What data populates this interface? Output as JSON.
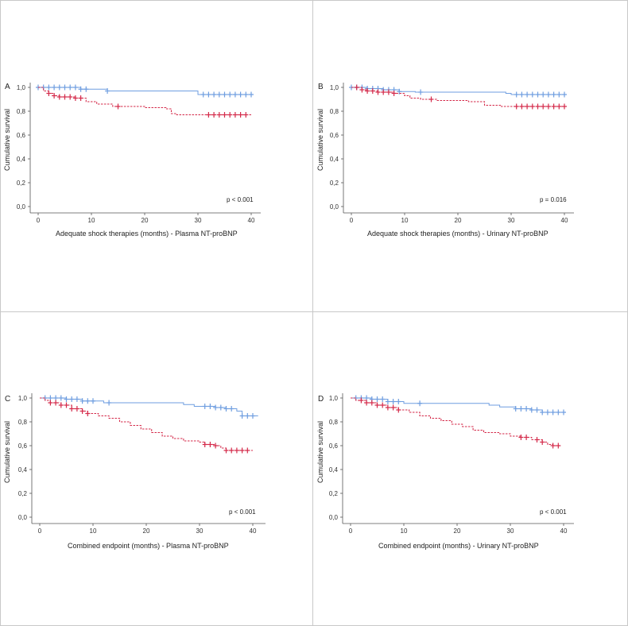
{
  "colors": {
    "high": "#d42a4a",
    "low": "#6f9ee0",
    "axis": "#555555",
    "divider": "#c8c8c8"
  },
  "chart_data": [
    {
      "panel": "A",
      "type": "line",
      "title": "",
      "xlabel": "Adequate shock therapies (months) - Plasma NT-proBNP",
      "ylabel": "Cumulative survival",
      "xlim": [
        0,
        40
      ],
      "ylim": [
        0.0,
        1.0
      ],
      "x_ticks": [
        "0",
        "10",
        "20",
        "30",
        "40"
      ],
      "y_ticks": [
        "0,0",
        "0,2",
        "0,4",
        "0,6",
        "0,8",
        "1,0"
      ],
      "annotation": "p < 0.001",
      "series": [
        {
          "name": "low",
          "style": "solid",
          "steps": [
            [
              0,
              1.0
            ],
            [
              8,
              0.985
            ],
            [
              13,
              0.97
            ],
            [
              30,
              0.94
            ],
            [
              40,
              0.94
            ]
          ],
          "censored": [
            0,
            1,
            2,
            3,
            4,
            5,
            6,
            7,
            8,
            9,
            13,
            31,
            32,
            33,
            34,
            35,
            36,
            37,
            38,
            39,
            40
          ]
        },
        {
          "name": "high",
          "style": "dashed",
          "steps": [
            [
              0,
              1.0
            ],
            [
              1,
              0.97
            ],
            [
              2,
              0.95
            ],
            [
              3,
              0.93
            ],
            [
              4,
              0.92
            ],
            [
              7,
              0.91
            ],
            [
              9,
              0.88
            ],
            [
              11,
              0.86
            ],
            [
              14,
              0.84
            ],
            [
              20,
              0.83
            ],
            [
              24,
              0.82
            ],
            [
              25,
              0.78
            ],
            [
              26,
              0.77
            ],
            [
              40,
              0.77
            ]
          ],
          "censored": [
            2,
            3,
            4,
            5,
            6,
            7,
            8,
            15,
            32,
            33,
            34,
            35,
            36,
            37,
            38,
            39
          ]
        }
      ]
    },
    {
      "panel": "B",
      "type": "line",
      "title": "",
      "xlabel": "Adequate shock therapies (months) - Urinary NT-proBNP",
      "ylabel": "Cumulative survival",
      "xlim": [
        0,
        40
      ],
      "ylim": [
        0.0,
        1.0
      ],
      "x_ticks": [
        "0",
        "10",
        "20",
        "30",
        "40"
      ],
      "y_ticks": [
        "0,0",
        "0,2",
        "0,4",
        "0,6",
        "0,8",
        "1,0"
      ],
      "annotation": "p = 0.016",
      "series": [
        {
          "name": "low",
          "style": "solid",
          "steps": [
            [
              0,
              1.0
            ],
            [
              3,
              0.99
            ],
            [
              6,
              0.98
            ],
            [
              9,
              0.965
            ],
            [
              12,
              0.96
            ],
            [
              29,
              0.95
            ],
            [
              30,
              0.94
            ],
            [
              40,
              0.94
            ]
          ],
          "censored": [
            0,
            1,
            2,
            3,
            4,
            5,
            6,
            7,
            8,
            9,
            13,
            31,
            32,
            33,
            34,
            35,
            36,
            37,
            38,
            39,
            40
          ]
        },
        {
          "name": "high",
          "style": "dashed",
          "steps": [
            [
              0,
              1.0
            ],
            [
              2,
              0.98
            ],
            [
              3,
              0.97
            ],
            [
              5,
              0.96
            ],
            [
              8,
              0.95
            ],
            [
              10,
              0.93
            ],
            [
              11,
              0.91
            ],
            [
              13,
              0.9
            ],
            [
              16,
              0.89
            ],
            [
              22,
              0.88
            ],
            [
              25,
              0.85
            ],
            [
              28,
              0.84
            ],
            [
              40,
              0.84
            ]
          ],
          "censored": [
            1,
            2,
            3,
            4,
            5,
            6,
            7,
            8,
            15,
            31,
            32,
            33,
            34,
            35,
            36,
            37,
            38,
            39,
            40
          ]
        }
      ]
    },
    {
      "panel": "C",
      "type": "line",
      "title": "",
      "xlabel": "Combined endpoint (months) - Plasma NT-proBNP",
      "ylabel": "Cumulative survival",
      "xlim": [
        0,
        40
      ],
      "ylim": [
        0.0,
        1.0
      ],
      "x_ticks": [
        "0",
        "10",
        "20",
        "30",
        "40"
      ],
      "y_ticks": [
        "0,0",
        "0,2",
        "0,4",
        "0,6",
        "0,8",
        "1,0"
      ],
      "annotation": "p < 0.001",
      "series": [
        {
          "name": "low",
          "style": "solid",
          "steps": [
            [
              0,
              1.0
            ],
            [
              5,
              0.99
            ],
            [
              8,
              0.975
            ],
            [
              12,
              0.96
            ],
            [
              27,
              0.945
            ],
            [
              29,
              0.93
            ],
            [
              33,
              0.92
            ],
            [
              35,
              0.91
            ],
            [
              37,
              0.89
            ],
            [
              38,
              0.85
            ],
            [
              41,
              0.85
            ]
          ],
          "censored": [
            1,
            2,
            3,
            4,
            5,
            6,
            7,
            8,
            9,
            10,
            13,
            31,
            32,
            33,
            34,
            35,
            36,
            38,
            39,
            40
          ]
        },
        {
          "name": "high",
          "style": "dashed",
          "steps": [
            [
              0,
              1.0
            ],
            [
              1,
              0.98
            ],
            [
              2,
              0.96
            ],
            [
              4,
              0.94
            ],
            [
              6,
              0.91
            ],
            [
              8,
              0.89
            ],
            [
              9,
              0.87
            ],
            [
              11,
              0.85
            ],
            [
              13,
              0.83
            ],
            [
              15,
              0.8
            ],
            [
              17,
              0.77
            ],
            [
              19,
              0.74
            ],
            [
              21,
              0.71
            ],
            [
              23,
              0.68
            ],
            [
              25,
              0.66
            ],
            [
              27,
              0.64
            ],
            [
              30,
              0.63
            ],
            [
              31,
              0.61
            ],
            [
              33,
              0.6
            ],
            [
              34,
              0.58
            ],
            [
              35,
              0.56
            ],
            [
              40,
              0.56
            ]
          ],
          "censored": [
            2,
            3,
            4,
            5,
            6,
            7,
            8,
            9,
            31,
            32,
            33,
            35,
            36,
            37,
            38,
            39
          ]
        }
      ]
    },
    {
      "panel": "D",
      "type": "line",
      "title": "",
      "xlabel": "Combined endpoint (months) - Urinary NT-proBNP",
      "ylabel": "Cumulative survival",
      "xlim": [
        0,
        40
      ],
      "ylim": [
        0.0,
        1.0
      ],
      "x_ticks": [
        "0",
        "10",
        "20",
        "30",
        "40"
      ],
      "y_ticks": [
        "0,0",
        "0,2",
        "0,4",
        "0,6",
        "0,8",
        "1,0"
      ],
      "annotation": "p < 0.001",
      "series": [
        {
          "name": "low",
          "style": "solid",
          "steps": [
            [
              0,
              1.0
            ],
            [
              4,
              0.99
            ],
            [
              7,
              0.97
            ],
            [
              10,
              0.955
            ],
            [
              26,
              0.94
            ],
            [
              28,
              0.925
            ],
            [
              31,
              0.91
            ],
            [
              34,
              0.9
            ],
            [
              36,
              0.88
            ],
            [
              40,
              0.88
            ]
          ],
          "censored": [
            1,
            2,
            3,
            4,
            5,
            6,
            7,
            8,
            9,
            13,
            31,
            32,
            33,
            34,
            35,
            36,
            37,
            38,
            39,
            40
          ]
        },
        {
          "name": "high",
          "style": "dashed",
          "steps": [
            [
              0,
              1.0
            ],
            [
              1,
              0.98
            ],
            [
              3,
              0.96
            ],
            [
              5,
              0.94
            ],
            [
              7,
              0.92
            ],
            [
              9,
              0.9
            ],
            [
              11,
              0.88
            ],
            [
              13,
              0.85
            ],
            [
              15,
              0.83
            ],
            [
              17,
              0.81
            ],
            [
              19,
              0.78
            ],
            [
              21,
              0.76
            ],
            [
              23,
              0.73
            ],
            [
              25,
              0.71
            ],
            [
              28,
              0.7
            ],
            [
              30,
              0.68
            ],
            [
              32,
              0.67
            ],
            [
              34,
              0.65
            ],
            [
              36,
              0.63
            ],
            [
              37,
              0.61
            ],
            [
              38,
              0.6
            ],
            [
              39,
              0.6
            ]
          ],
          "censored": [
            2,
            3,
            4,
            5,
            6,
            7,
            8,
            9,
            32,
            33,
            35,
            36,
            38,
            39
          ]
        }
      ]
    }
  ]
}
